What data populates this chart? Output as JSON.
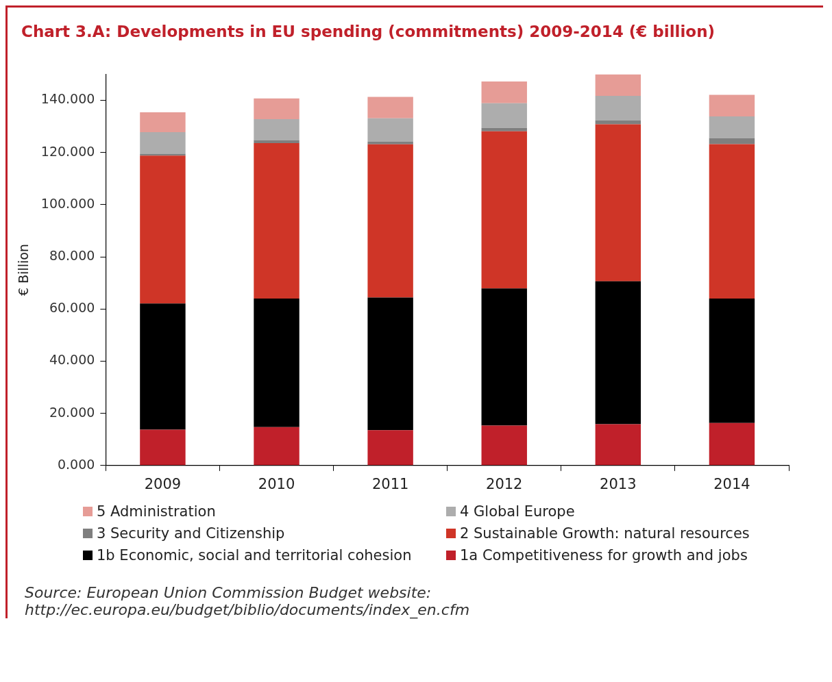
{
  "chart_data": {
    "type": "bar",
    "title": "Chart 3.A: Developments in EU spending (commitments) 2009-2014 (€ billion)",
    "ylabel": "€ Billion",
    "categories": [
      "2009",
      "2010",
      "2011",
      "2012",
      "2013",
      "2014"
    ],
    "stacked": true,
    "legend": "bottom",
    "grid": false,
    "ylim": [
      0,
      150
    ],
    "yticks": [
      {
        "value": 0,
        "label": "0.000"
      },
      {
        "value": 20,
        "label": "20.000"
      },
      {
        "value": 40,
        "label": "40.000"
      },
      {
        "value": 60,
        "label": "60.000"
      },
      {
        "value": 80,
        "label": "80.000"
      },
      {
        "value": 100,
        "label": "100.000"
      },
      {
        "value": 120,
        "label": "120.000"
      },
      {
        "value": 140,
        "label": "140.000"
      }
    ],
    "series": [
      {
        "name": "1a Competitiveness for growth and jobs",
        "color": "#c0202a",
        "values": [
          13.7,
          14.7,
          13.5,
          15.3,
          15.8,
          16.3
        ]
      },
      {
        "name": "1b Economic, social and territorial cohesion",
        "color": "#000000",
        "values": [
          48.4,
          49.3,
          50.9,
          52.6,
          54.8,
          47.7
        ]
      },
      {
        "name": "2 Sustainable Growth: natural resources",
        "color": "#cf3527",
        "values": [
          56.7,
          59.6,
          58.7,
          60.2,
          60.2,
          59.2
        ]
      },
      {
        "name": "3 Security and Citizenship",
        "color": "#7f7f7f",
        "values": [
          0.7,
          1.1,
          1.1,
          1.3,
          1.5,
          2.3
        ]
      },
      {
        "name": "4 Global Europe",
        "color": "#adadad",
        "values": [
          8.3,
          8.1,
          8.9,
          9.5,
          9.4,
          8.3
        ]
      },
      {
        "name": "5 Administration",
        "color": "#e69c96",
        "values": [
          7.6,
          7.9,
          8.2,
          8.3,
          8.3,
          8.3
        ]
      }
    ],
    "annotations": [
      "Source: European Union Commission Budget website: http://ec.europa.eu/budget/biblio/documents/index_en.cfm"
    ]
  }
}
